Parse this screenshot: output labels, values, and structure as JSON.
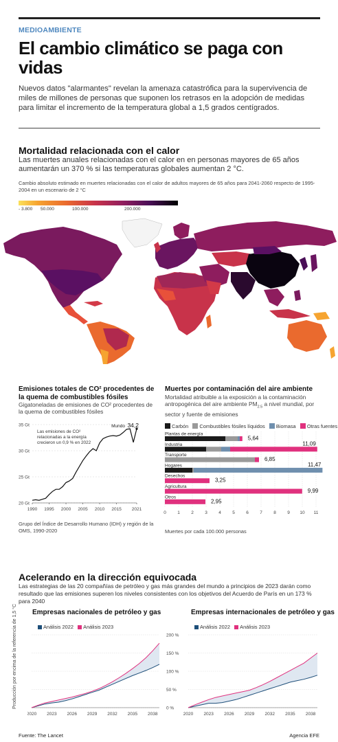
{
  "header": {
    "kicker": "MEDIOAMBIENTE",
    "headline": "El cambio climático se paga con vidas",
    "intro": "Nuevos datos \"alarmantes\" revelan la amenaza catastrófica para la supervivencia de miles de millones de personas que suponen los retrasos en la adopción de medidas para limitar el incremento de la temperatura global a 1,5 grados centígrados."
  },
  "heat": {
    "title": "Mortalidad relacionada con el calor",
    "subtitle": "Las muertes anuales relacionadas con el calor en en personas mayores de 65 años aumentarán un 370 % si las temperaturas globales aumentan 2 °C.",
    "note": "Cambio absoluto estimado en muertes relacionadas con el calor de adultos mayores de 65 años para 2041-2060 respecto de 1995-2004 en un escenario de 2 °C",
    "scale_ticks": [
      "- 3.800",
      "50.000",
      "100.000",
      "200.000"
    ],
    "colors": [
      "#fbe05a",
      "#f6a430",
      "#ea6a2e",
      "#c8334a",
      "#8e1d5e",
      "#4a0f57",
      "#000000"
    ]
  },
  "chart_data": [
    {
      "type": "line",
      "title": "Emisiones totales de CO² procedentes de la quema de combustibles fósiles",
      "subtitle": "Gigatoneladas de emisiones de CO² procedentes de la quema de combustibles fósiles",
      "ylabels": [
        "35 Gt",
        "30 Gt",
        "25 Gt",
        "20 Gt"
      ],
      "yticks": [
        35,
        30,
        25,
        20
      ],
      "ylim": [
        20,
        35
      ],
      "xlim": [
        1990,
        2021
      ],
      "xticks": [
        1990,
        1995,
        2000,
        2005,
        2010,
        2015,
        2021
      ],
      "annotation": "Las emisiones de CO² relacionadas a la energía crecieron un 0,9 % en 2022",
      "endpoint_label": "Mundo",
      "endpoint_value_label": "34,2",
      "footnote": "Grupo del Índice de Desarrollo Humano (IDH) y región de la OMS, 1990-2020",
      "color": "#111111",
      "x": [
        1990,
        1991,
        1992,
        1993,
        1994,
        1995,
        1996,
        1997,
        1998,
        1999,
        2000,
        2001,
        2002,
        2003,
        2004,
        2005,
        2006,
        2007,
        2008,
        2009,
        2010,
        2011,
        2012,
        2013,
        2014,
        2015,
        2016,
        2017,
        2018,
        2019,
        2020,
        2021
      ],
      "y": [
        20.5,
        20.6,
        20.5,
        20.7,
        20.9,
        21.6,
        22.2,
        22.6,
        22.6,
        23.1,
        23.9,
        24.2,
        24.7,
        25.9,
        27.0,
        28.1,
        29.0,
        29.8,
        30.4,
        30.0,
        31.5,
        32.3,
        32.6,
        32.8,
        32.9,
        32.8,
        33.0,
        33.5,
        34.1,
        34.2,
        31.6,
        34.2
      ]
    },
    {
      "type": "bar",
      "title": "Muertes por contaminación del aire ambiente",
      "subtitle_pre": "Mortalidad atribuible a la exposición a la contaminación antropogénica del aire ambiente PM",
      "subtitle_sub": "2.5",
      "subtitle_post": " a nivel mundial, por sector y fuente de emisiones",
      "xlabel": "Muertes por cada 100.000 personas",
      "xlim": [
        0,
        11
      ],
      "xticks": [
        "0",
        "1",
        "2",
        "3",
        "4",
        "5",
        "6",
        "7",
        "8",
        "9",
        "10",
        "11"
      ],
      "legend": [
        {
          "name": "Carbón",
          "color": "#1a1a1a"
        },
        {
          "name": "Combustibles fósiles líquidos",
          "color": "#9a9a9a"
        },
        {
          "name": "Biomasa",
          "color": "#6f8fae"
        },
        {
          "name": "Otras fuentes",
          "color": "#e0317e"
        }
      ],
      "categories": [
        "Plantas de energía",
        "Industria",
        "Transporte",
        "Hogares",
        "Desechos",
        "Agricultura",
        "Otros"
      ],
      "totals": [
        "5,64",
        "11,09",
        "6,85",
        "11,47",
        "3,25",
        "9,99",
        "2,95"
      ],
      "segments": [
        [
          4.4,
          0.9,
          0.15,
          0.19
        ],
        [
          3.0,
          1.1,
          0.65,
          6.34
        ],
        [
          0,
          6.55,
          0,
          0.3
        ],
        [
          2.0,
          0.1,
          9.37,
          0
        ],
        [
          0,
          0,
          0,
          3.25
        ],
        [
          0,
          0,
          0,
          9.99
        ],
        [
          0,
          0,
          0,
          2.95
        ]
      ]
    },
    {
      "type": "area",
      "title": "Empresas nacionales de petróleo y gas",
      "ylabel": "Producción por encima de la referencia de 1,5 °C",
      "ylim": [
        0,
        200
      ],
      "xlim": [
        2020,
        2039
      ],
      "xticks": [
        "2020",
        "2023",
        "2026",
        "2029",
        "2032",
        "2035",
        "2038"
      ],
      "series": [
        {
          "name": "Análisis 2022",
          "color": "#1d4e79",
          "x": [
            2020,
            2021,
            2022,
            2023,
            2024,
            2025,
            2026,
            2027,
            2028,
            2029,
            2030,
            2031,
            2032,
            2033,
            2034,
            2035,
            2036,
            2037,
            2038,
            2039
          ],
          "values": [
            0,
            5,
            10,
            13,
            15,
            19,
            24,
            30,
            36,
            42,
            48,
            56,
            64,
            72,
            80,
            88,
            95,
            102,
            110,
            119
          ]
        },
        {
          "name": "Análisis 2023",
          "color": "#e0317e",
          "x": [
            2020,
            2021,
            2022,
            2023,
            2024,
            2025,
            2026,
            2027,
            2028,
            2029,
            2030,
            2031,
            2032,
            2033,
            2034,
            2035,
            2036,
            2037,
            2038,
            2039
          ],
          "values": [
            0,
            7,
            13,
            17,
            21,
            25,
            29,
            34,
            39,
            45,
            52,
            61,
            71,
            82,
            94,
            107,
            121,
            137,
            156,
            177
          ]
        }
      ]
    },
    {
      "type": "area",
      "title": "Empresas internacionales de petróleo y gas",
      "yticks": [
        "200 %",
        "150 %",
        "100 %",
        "50 %",
        "0 %"
      ],
      "ylim": [
        0,
        200
      ],
      "xlim": [
        2020,
        2039
      ],
      "xticks": [
        "2020",
        "2023",
        "2026",
        "2029",
        "2032",
        "2035",
        "2038"
      ],
      "series": [
        {
          "name": "Análisis 2022",
          "color": "#1d4e79",
          "x": [
            2020,
            2021,
            2022,
            2023,
            2024,
            2025,
            2026,
            2027,
            2028,
            2029,
            2030,
            2031,
            2032,
            2033,
            2034,
            2035,
            2036,
            2037,
            2038,
            2039
          ],
          "values": [
            0,
            4,
            8,
            12,
            12,
            14,
            18,
            22,
            28,
            34,
            40,
            46,
            52,
            58,
            64,
            70,
            74,
            78,
            83,
            89
          ]
        },
        {
          "name": "Análisis 2023",
          "color": "#e0317e",
          "x": [
            2020,
            2021,
            2022,
            2023,
            2024,
            2025,
            2026,
            2027,
            2028,
            2029,
            2030,
            2031,
            2032,
            2033,
            2034,
            2035,
            2036,
            2037,
            2038,
            2039
          ],
          "values": [
            0,
            8,
            15,
            22,
            28,
            32,
            36,
            40,
            44,
            48,
            55,
            63,
            72,
            82,
            92,
            102,
            112,
            122,
            136,
            150
          ]
        }
      ]
    }
  ],
  "section3": {
    "title": "Acelerando en la dirección equivocada",
    "subtitle": "Las estrategias de las 20 compañías de petróleo y gas más grandes del mundo a principios de 2023 darán como resultado que las emisiones superen los niveles consistentes con los objetivos del Acuerdo de París en un 173 % para 2040"
  },
  "footer": {
    "source": "Fuente: The Lancet",
    "agency": "Agencia EFE"
  }
}
